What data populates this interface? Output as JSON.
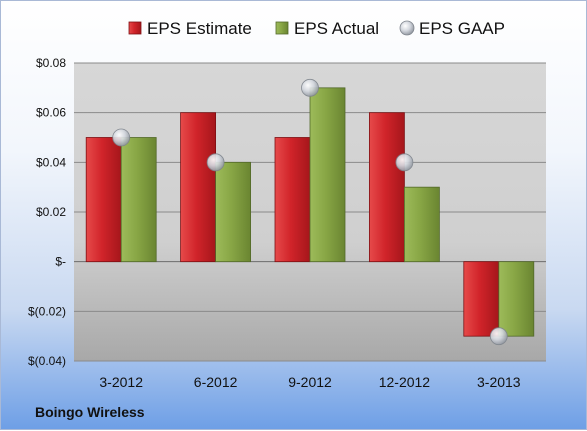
{
  "chart_data": {
    "type": "bar",
    "categories": [
      "3-2012",
      "6-2012",
      "9-2012",
      "12-2012",
      "3-2013"
    ],
    "series": [
      {
        "name": "EPS Estimate",
        "values": [
          0.05,
          0.06,
          0.05,
          0.06,
          -0.03
        ],
        "color": "#cc1f24"
      },
      {
        "name": "EPS Actual",
        "values": [
          0.05,
          0.04,
          0.07,
          0.03,
          -0.03
        ],
        "color": "#86a543"
      }
    ],
    "points": {
      "name": "EPS GAAP",
      "values": [
        0.05,
        0.04,
        0.07,
        0.04,
        -0.03
      ],
      "color": "#b9bfc9"
    },
    "y_ticks": [
      {
        "value": 0.08,
        "label": "$0.08"
      },
      {
        "value": 0.06,
        "label": "$0.06"
      },
      {
        "value": 0.04,
        "label": "$0.04"
      },
      {
        "value": 0.02,
        "label": "$0.02"
      },
      {
        "value": 0,
        "label": "$-"
      },
      {
        "value": -0.02,
        "label": "$(0.02)"
      },
      {
        "value": -0.04,
        "label": "$(0.04)"
      }
    ],
    "ylim": [
      -0.04,
      0.08
    ],
    "legend_position": "top",
    "grid": true,
    "company": "Boingo Wireless"
  }
}
